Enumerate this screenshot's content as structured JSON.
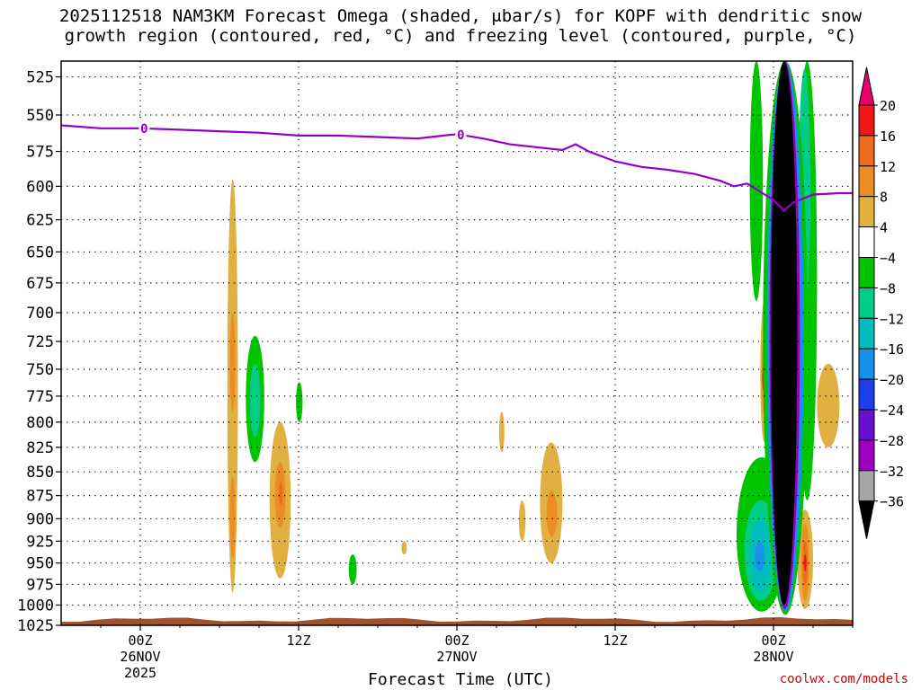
{
  "title_line1": "2025112518 NAM3KM Forecast Omega (shaded, μbar/s) for KOPF with dendritic snow",
  "title_line2": "growth region (contoured, red, °C) and freezing level (contoured, purple, °C)",
  "credit": "coolwx.com/models",
  "chart_data": {
    "type": "heatmap",
    "title": "2025112518 NAM3KM Forecast Omega (shaded, μbar/s) for KOPF with dendritic snow growth region (contoured, red, °C) and freezing level (contoured, purple, °C)",
    "xlabel": "Forecast Time (UTC)",
    "ylabel": "",
    "x_range_hours": [
      -6,
      54
    ],
    "y_axis": {
      "scale": "log",
      "direction": "inverted",
      "range": [
        1025,
        515
      ],
      "ticks": [
        525,
        550,
        575,
        600,
        625,
        650,
        675,
        700,
        725,
        750,
        775,
        800,
        825,
        850,
        875,
        900,
        925,
        950,
        975,
        1000,
        1025
      ]
    },
    "grid": true,
    "x_ticks": [
      {
        "hour": 0,
        "line1": "00Z",
        "line2": "26NOV",
        "line3": "2025"
      },
      {
        "hour": 12,
        "line1": "12Z",
        "line2": "",
        "line3": ""
      },
      {
        "hour": 24,
        "line1": "00Z",
        "line2": "27NOV",
        "line3": ""
      },
      {
        "hour": 36,
        "line1": "12Z",
        "line2": "",
        "line3": ""
      },
      {
        "hour": 48,
        "line1": "00Z",
        "line2": "28NOV",
        "line3": ""
      }
    ],
    "colorbar": {
      "labels": [
        "20",
        "16",
        "12",
        "8",
        "4",
        "−4",
        "−8",
        "−12",
        "−16",
        "−20",
        "−24",
        "−28",
        "−32",
        "−36"
      ],
      "top_triangle_color": "#e8006e",
      "segments": [
        {
          "from": 16,
          "to": 20,
          "color": "#ee1818"
        },
        {
          "from": 12,
          "to": 16,
          "color": "#ee6a1e"
        },
        {
          "from": 8,
          "to": 12,
          "color": "#ec8c24"
        },
        {
          "from": 4,
          "to": 8,
          "color": "#e0b040"
        },
        {
          "from": -4,
          "to": 4,
          "color": "#ffffff"
        },
        {
          "from": -8,
          "to": -4,
          "color": "#00c400"
        },
        {
          "from": -12,
          "to": -8,
          "color": "#00cc88"
        },
        {
          "from": -16,
          "to": -12,
          "color": "#00bcbc"
        },
        {
          "from": -20,
          "to": -16,
          "color": "#1890ec"
        },
        {
          "from": -24,
          "to": -20,
          "color": "#1c40e8"
        },
        {
          "from": -28,
          "to": -24,
          "color": "#6a10d0"
        },
        {
          "from": -32,
          "to": -28,
          "color": "#9b00c0"
        },
        {
          "from": -36,
          "to": -32,
          "color": "#a6a6a6"
        }
      ],
      "bottom_triangle_color": "#000000"
    },
    "freezing_level": {
      "label": "0",
      "color": "#9400c8",
      "label_points_hours": [
        0.3,
        24.3
      ],
      "points": [
        {
          "h": -6,
          "p": 557
        },
        {
          "h": -3,
          "p": 559
        },
        {
          "h": 0,
          "p": 559
        },
        {
          "h": 3,
          "p": 560
        },
        {
          "h": 6,
          "p": 561
        },
        {
          "h": 9,
          "p": 562
        },
        {
          "h": 12,
          "p": 564
        },
        {
          "h": 15,
          "p": 564
        },
        {
          "h": 18,
          "p": 565
        },
        {
          "h": 21,
          "p": 566
        },
        {
          "h": 23,
          "p": 564
        },
        {
          "h": 24,
          "p": 563
        },
        {
          "h": 26,
          "p": 566
        },
        {
          "h": 28,
          "p": 570
        },
        {
          "h": 30,
          "p": 572
        },
        {
          "h": 32,
          "p": 574
        },
        {
          "h": 33,
          "p": 570
        },
        {
          "h": 34,
          "p": 575
        },
        {
          "h": 36,
          "p": 582
        },
        {
          "h": 38,
          "p": 586
        },
        {
          "h": 40,
          "p": 588
        },
        {
          "h": 42,
          "p": 591
        },
        {
          "h": 44,
          "p": 596
        },
        {
          "h": 45,
          "p": 600
        },
        {
          "h": 46,
          "p": 598
        },
        {
          "h": 47,
          "p": 604
        },
        {
          "h": 48,
          "p": 610
        },
        {
          "h": 48.8,
          "p": 618
        },
        {
          "h": 49.5,
          "p": 612
        },
        {
          "h": 51,
          "p": 606
        },
        {
          "h": 53,
          "p": 605
        },
        {
          "h": 54,
          "p": 605
        }
      ]
    },
    "shaded_regions": [
      {
        "level": 4,
        "h0": 6.6,
        "h1": 7.4,
        "p0": 595,
        "p1": 985
      },
      {
        "level": 8,
        "h0": 6.8,
        "h1": 7.2,
        "p0": 700,
        "p1": 790
      },
      {
        "level": 8,
        "h0": 6.8,
        "h1": 7.2,
        "p0": 855,
        "p1": 945
      },
      {
        "level": -4,
        "h0": 8.0,
        "h1": 9.4,
        "p0": 720,
        "p1": 840
      },
      {
        "level": -8,
        "h0": 8.3,
        "h1": 9.1,
        "p0": 745,
        "p1": 815
      },
      {
        "level": 4,
        "h0": 9.8,
        "h1": 11.4,
        "p0": 800,
        "p1": 968
      },
      {
        "level": 8,
        "h0": 10.2,
        "h1": 11.0,
        "p0": 840,
        "p1": 910
      },
      {
        "level": 12,
        "h0": 10.5,
        "h1": 10.8,
        "p0": 860,
        "p1": 885
      },
      {
        "level": -4,
        "h0": 11.8,
        "h1": 12.3,
        "p0": 762,
        "p1": 800
      },
      {
        "level": -4,
        "h0": 15.8,
        "h1": 16.4,
        "p0": 940,
        "p1": 975
      },
      {
        "level": 4,
        "h0": 19.8,
        "h1": 20.2,
        "p0": 925,
        "p1": 940
      },
      {
        "level": 4,
        "h0": 27.2,
        "h1": 27.6,
        "p0": 790,
        "p1": 830
      },
      {
        "level": 4,
        "h0": 28.7,
        "h1": 29.2,
        "p0": 880,
        "p1": 925
      },
      {
        "level": 4,
        "h0": 30.3,
        "h1": 32.0,
        "p0": 820,
        "p1": 950
      },
      {
        "level": 8,
        "h0": 30.8,
        "h1": 31.6,
        "p0": 870,
        "p1": 920
      },
      {
        "level": 4,
        "h0": 51.3,
        "h1": 53.0,
        "p0": 745,
        "p1": 825
      },
      {
        "level": -4,
        "h0": 45.2,
        "h1": 49.0,
        "p0": 835,
        "p1": 1008
      },
      {
        "level": -8,
        "h0": 45.8,
        "h1": 48.3,
        "p0": 880,
        "p1": 995
      },
      {
        "level": -12,
        "h0": 46.2,
        "h1": 47.8,
        "p0": 900,
        "p1": 985
      },
      {
        "level": -16,
        "h0": 46.6,
        "h1": 47.3,
        "p0": 925,
        "p1": 960
      },
      {
        "level": -4,
        "h0": 46.2,
        "h1": 47.2,
        "p0": 515,
        "p1": 690
      },
      {
        "level": 4,
        "h0": 49.8,
        "h1": 51.0,
        "p0": 890,
        "p1": 1005
      },
      {
        "level": 8,
        "h0": 50.1,
        "h1": 50.7,
        "p0": 905,
        "p1": 995
      },
      {
        "level": 12,
        "h0": 50.2,
        "h1": 50.6,
        "p0": 925,
        "p1": 975
      },
      {
        "level": 16,
        "h0": 50.3,
        "h1": 50.5,
        "p0": 940,
        "p1": 960
      },
      {
        "level": -4,
        "h0": 49.8,
        "h1": 51.3,
        "p0": 515,
        "p1": 880
      },
      {
        "level": -8,
        "h0": 49.9,
        "h1": 50.8,
        "p0": 520,
        "p1": 700
      },
      {
        "level": 4,
        "h0": 47.0,
        "h1": 47.6,
        "p0": 690,
        "p1": 820
      },
      {
        "level": 8,
        "h0": 47.1,
        "h1": 47.4,
        "p0": 720,
        "p1": 790
      },
      {
        "level": 16,
        "h0": 47.15,
        "h1": 47.35,
        "p0": 745,
        "p1": 770
      },
      {
        "level": -4,
        "h0": 47.2,
        "h1": 50.6,
        "p0": 515,
        "p1": 1012
      },
      {
        "level": -16,
        "h0": 47.5,
        "h1": 50.3,
        "p0": 515,
        "p1": 1008
      },
      {
        "level": -28,
        "h0": 47.7,
        "h1": 50.0,
        "p0": 515,
        "p1": 1005
      },
      {
        "level": -36,
        "h0": 47.8,
        "h1": 49.8,
        "p0": 515,
        "p1": 1000
      }
    ],
    "terrain": {
      "color": "#a0522d",
      "p_top": 1018
    }
  }
}
